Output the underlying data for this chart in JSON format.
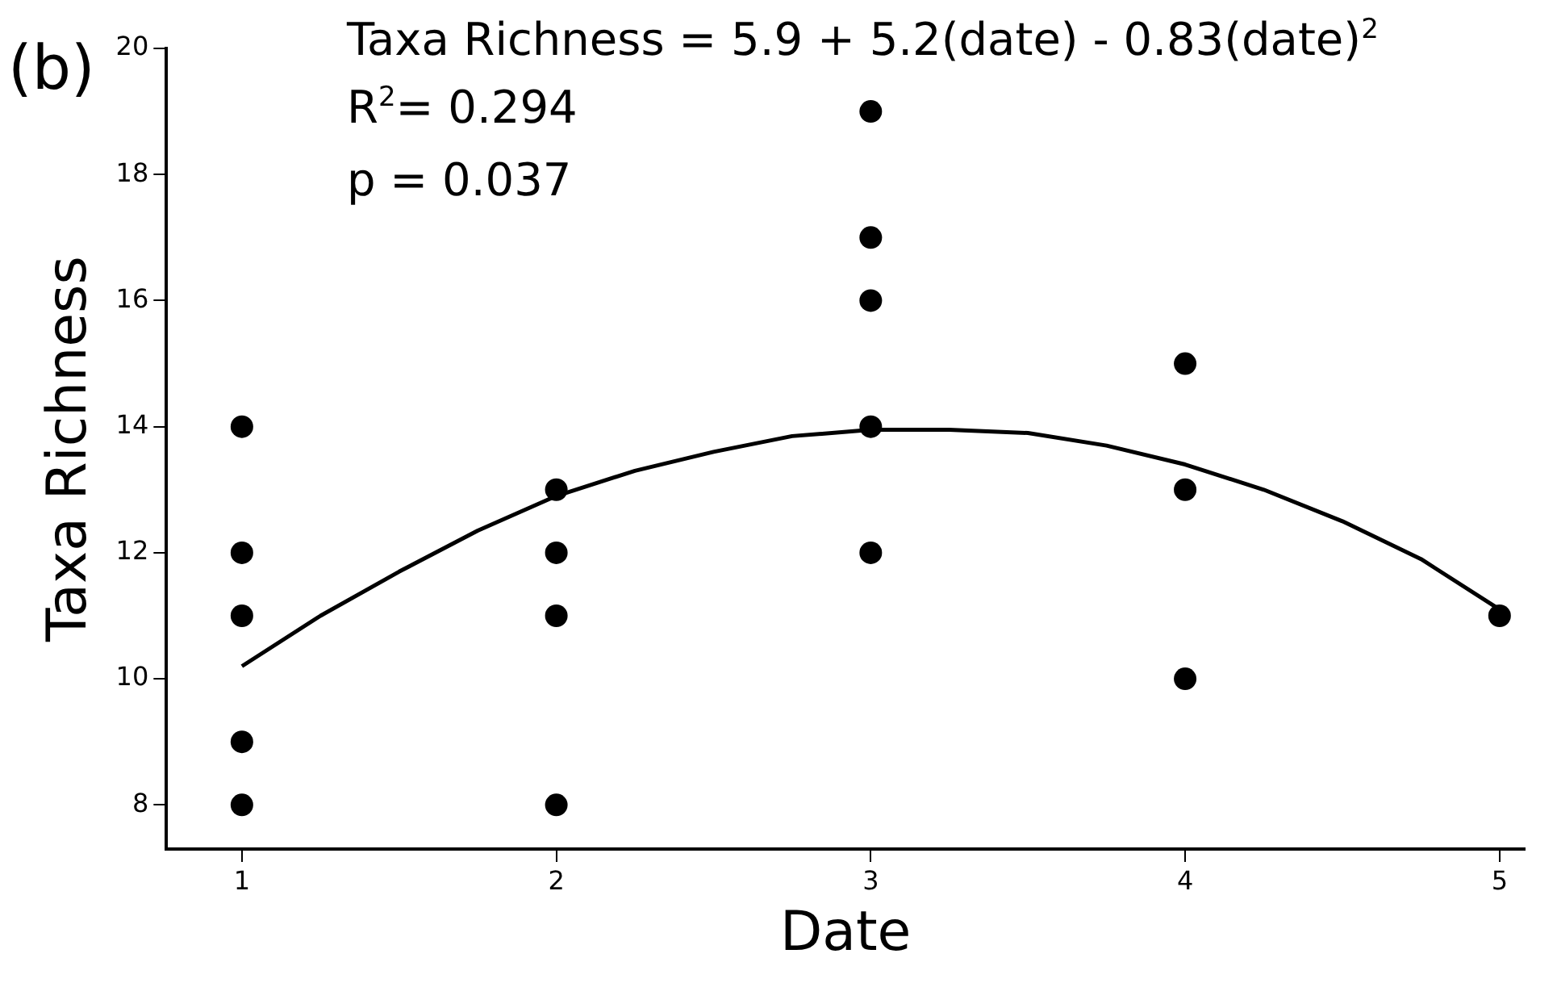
{
  "chart_data": {
    "type": "scatter",
    "xlabel": "Date",
    "ylabel": "Taxa Richness",
    "annotations": [
      "(b)",
      "Taxa Richness = 5.9 + 5.2(date) - 0.83(date)$^{2}$",
      "R$^{2}$= 0.294",
      "p = 0.037"
    ],
    "xlim": [
      0.76,
      5.08
    ],
    "ylim": [
      7.3,
      20
    ],
    "xticks": [
      1,
      2,
      3,
      4,
      5
    ],
    "yticks": [
      8,
      10,
      12,
      14,
      16,
      18,
      20
    ],
    "grid": false,
    "legend": false,
    "marker": "circle",
    "series": [
      {
        "color": "#000000",
        "x": [
          1,
          1,
          1,
          1,
          1,
          2,
          2,
          2,
          2,
          3,
          3,
          3,
          3,
          3,
          4,
          4,
          4,
          5
        ],
        "values": [
          14,
          12,
          11,
          9,
          8,
          13,
          12,
          11,
          8,
          19,
          17,
          16,
          14,
          12,
          15,
          13,
          10,
          11
        ]
      },
      {
        "type": "line",
        "color": "#000000",
        "line_style": "solid",
        "marker": "none",
        "x": [
          1,
          1.25,
          1.5,
          1.75,
          2,
          2.25,
          2.5,
          2.75,
          3,
          3.25,
          3.5,
          3.75,
          4,
          4.25,
          4.5,
          4.75,
          5
        ],
        "values": [
          10.2,
          11.0,
          11.7,
          12.35,
          12.9,
          13.3,
          13.6,
          13.85,
          13.95,
          13.95,
          13.9,
          13.7,
          13.4,
          13.0,
          12.5,
          11.9,
          11.1
        ]
      }
    ]
  }
}
